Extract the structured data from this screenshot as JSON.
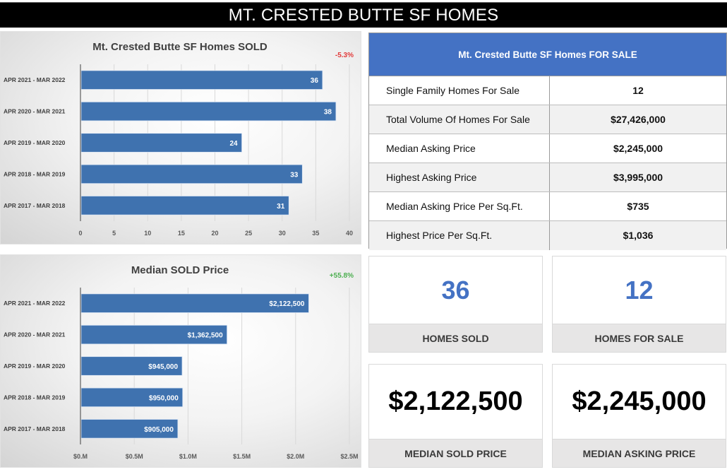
{
  "banner": {
    "title": "MT. CRESTED BUTTE SF HOMES"
  },
  "colors": {
    "bar": "#3f72af",
    "accent_blue": "#4472c4",
    "negative": "#e23b3b",
    "positive": "#4caf50"
  },
  "chart_data": [
    {
      "type": "bar",
      "orientation": "horizontal",
      "title": "Mt. Crested Butte SF Homes SOLD",
      "change_label": "-5.3%",
      "change_color": "#e23b3b",
      "categories": [
        "APR 2021 - MAR 2022",
        "APR 2020 - MAR 2021",
        "APR 2019 - MAR 2020",
        "APR 2018 - MAR 2019",
        "APR 2017 - MAR 2018"
      ],
      "values": [
        36,
        38,
        24,
        33,
        31
      ],
      "data_labels": [
        "36",
        "38",
        "24",
        "33",
        "31"
      ],
      "xlim": [
        0,
        40
      ],
      "xticks": [
        0,
        5,
        10,
        15,
        20,
        25,
        30,
        35,
        40
      ],
      "xtick_labels": [
        "0",
        "5",
        "10",
        "15",
        "20",
        "25",
        "30",
        "35",
        "40"
      ],
      "grid": true,
      "xlabel": "",
      "ylabel": ""
    },
    {
      "type": "bar",
      "orientation": "horizontal",
      "title": "Median SOLD Price",
      "change_label": "+55.8%",
      "change_color": "#4caf50",
      "categories": [
        "APR 2021 - MAR 2022",
        "APR 2020 - MAR 2021",
        "APR 2019 - MAR 2020",
        "APR 2018 - MAR 2019",
        "APR 2017 - MAR 2018"
      ],
      "values": [
        2122500,
        1362500,
        945000,
        950000,
        905000
      ],
      "data_labels": [
        "$2,122,500",
        "$1,362,500",
        "$945,000",
        "$950,000",
        "$905,000"
      ],
      "xlim": [
        0,
        2500000
      ],
      "xticks": [
        0,
        500000,
        1000000,
        1500000,
        2000000,
        2500000
      ],
      "xtick_labels": [
        "$0.M",
        "$0.5M",
        "$1.0M",
        "$1.5M",
        "$2.0M",
        "$2.5M"
      ],
      "grid": true,
      "xlabel": "",
      "ylabel": ""
    }
  ],
  "for_sale_table": {
    "title": "Mt. Crested Butte SF Homes FOR SALE",
    "rows": [
      {
        "label": "Single Family Homes For Sale",
        "value": "12"
      },
      {
        "label": "Total Volume Of Homes For Sale",
        "value": "$27,426,000"
      },
      {
        "label": "Median Asking Price",
        "value": "$2,245,000"
      },
      {
        "label": "Highest Asking Price",
        "value": "$3,995,000"
      },
      {
        "label": "Median Asking Price Per Sq.Ft.",
        "value": "$735"
      },
      {
        "label": "Highest Price Per Sq.Ft.",
        "value": "$1,036"
      }
    ]
  },
  "kpis": {
    "homes_sold": {
      "value": "36",
      "label": "HOMES SOLD"
    },
    "homes_for_sale": {
      "value": "12",
      "label": "HOMES FOR SALE"
    },
    "median_sold_price": {
      "value": "$2,122,500",
      "label": "MEDIAN SOLD PRICE"
    },
    "median_asking_price": {
      "value": "$2,245,000",
      "label": "MEDIAN ASKING PRICE"
    }
  }
}
